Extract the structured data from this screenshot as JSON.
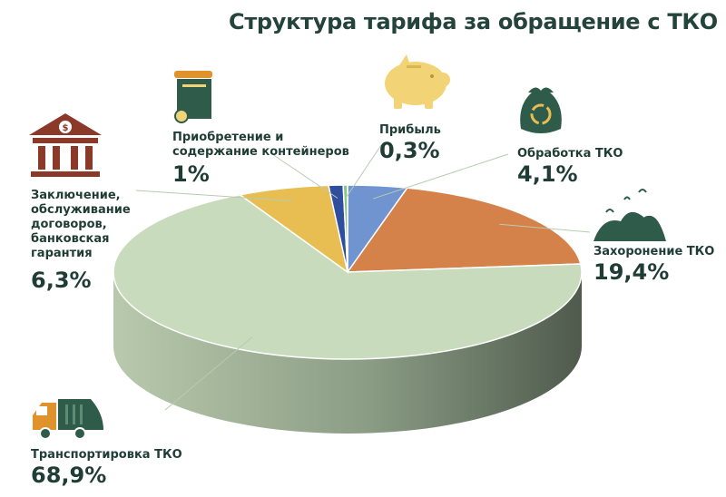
{
  "colors": {
    "transport": "#c9dbbd",
    "burial": "#d4824a",
    "processing": "#6f94d0",
    "profit": "#8fc48a",
    "containers": "#2f4f9e",
    "contracts": "#e8bd52",
    "title": "#24433a",
    "icon_green": "#2e5b4a",
    "icon_brown": "#8b3a2a",
    "icon_orange": "#e0922c",
    "icon_yellow": "#f2d477"
  },
  "icons": {
    "contracts": "bank-icon",
    "containers": "waste-container-icon",
    "profit": "piggy-bank-icon",
    "processing": "recycle-bag-icon",
    "burial": "landfill-icon",
    "transport": "garbage-truck-icon"
  },
  "chart_data": {
    "type": "pie",
    "title": "Структура тарифа за обращение с ТКО",
    "style": "3d",
    "slices": [
      {
        "key": "processing",
        "label": "Обработка ТКО",
        "value": 4.1,
        "display": "4,1%"
      },
      {
        "key": "burial",
        "label": "Захоронение ТКО",
        "value": 19.4,
        "display": "19,4%"
      },
      {
        "key": "transport",
        "label": "Транспортировка ТКО",
        "value": 68.9,
        "display": "68,9%"
      },
      {
        "key": "contracts",
        "label": "Заключение, обслуживание договоров, банковская гарантия",
        "value": 6.3,
        "display": "6,3%"
      },
      {
        "key": "containers",
        "label": "Приобретение и содержание контейнеров",
        "value": 1,
        "display": "1%"
      },
      {
        "key": "profit",
        "label": "Прибыль",
        "value": 0.3,
        "display": "0,3%"
      }
    ]
  }
}
